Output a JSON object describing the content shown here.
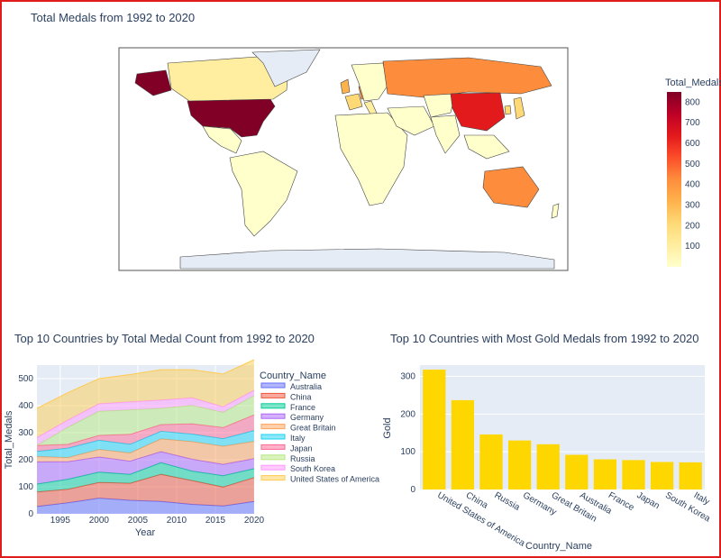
{
  "chart_data": [
    {
      "type": "choropleth",
      "title": "Total Medals from 1992 to 2020",
      "colorbar": {
        "title": "Total_Medals",
        "range": [
          0,
          850
        ],
        "ticks": [
          100,
          200,
          300,
          400,
          500,
          600,
          700,
          800
        ]
      },
      "colorscale": [
        "#ffffcc",
        "#ffeda0",
        "#fed976",
        "#feb24c",
        "#fd8d3c",
        "#fc4e2a",
        "#e31a1c",
        "#bd0026",
        "#800026"
      ],
      "no_data_color": "#e5ecf6",
      "countries": [
        {
          "name": "United States of America",
          "value": 850
        },
        {
          "name": "China",
          "value": 620
        },
        {
          "name": "Russia",
          "value": 430
        },
        {
          "name": "Germany",
          "value": 400
        },
        {
          "name": "Australia",
          "value": 310
        },
        {
          "name": "Great Britain",
          "value": 300
        },
        {
          "name": "France",
          "value": 250
        },
        {
          "name": "Italy",
          "value": 200
        },
        {
          "name": "Japan",
          "value": 200
        },
        {
          "name": "South Korea",
          "value": 180
        }
      ]
    },
    {
      "type": "area",
      "stacked": true,
      "title": "Top 10 Countries by Total Medal Count from 1992 to 2020",
      "xlabel": "Year",
      "ylabel": "Total_Medals",
      "xlim": [
        1992,
        2020
      ],
      "ylim": [
        0,
        550
      ],
      "xticks": [
        1995,
        2000,
        2005,
        2010,
        2015,
        2020
      ],
      "yticks": [
        0,
        100,
        200,
        300,
        400,
        500
      ],
      "legend_title": "Country_Name",
      "x": [
        1992,
        1996,
        2000,
        2004,
        2008,
        2012,
        2016,
        2020
      ],
      "series": [
        {
          "name": "Australia",
          "color": "#636efa",
          "values": [
            27,
            41,
            58,
            50,
            46,
            35,
            29,
            46
          ]
        },
        {
          "name": "China",
          "color": "#ef553b",
          "values": [
            54,
            50,
            58,
            63,
            100,
            88,
            70,
            88
          ]
        },
        {
          "name": "France",
          "color": "#00cc96",
          "values": [
            29,
            37,
            38,
            33,
            43,
            35,
            42,
            33
          ]
        },
        {
          "name": "Germany",
          "color": "#ab63fa",
          "values": [
            82,
            65,
            56,
            49,
            41,
            44,
            42,
            37
          ]
        },
        {
          "name": "Great Britain",
          "color": "#ffa15a",
          "values": [
            20,
            15,
            28,
            30,
            47,
            65,
            67,
            64
          ]
        },
        {
          "name": "Italy",
          "color": "#19d3f3",
          "values": [
            19,
            35,
            34,
            32,
            28,
            28,
            28,
            40
          ]
        },
        {
          "name": "Japan",
          "color": "#ff6692",
          "values": [
            22,
            14,
            18,
            37,
            25,
            38,
            41,
            58
          ]
        },
        {
          "name": "Russia",
          "color": "#b6e880",
          "values": [
            0,
            63,
            89,
            90,
            60,
            68,
            56,
            71
          ]
        },
        {
          "name": "South Korea",
          "color": "#ff97ff",
          "values": [
            29,
            27,
            28,
            30,
            31,
            28,
            21,
            20
          ]
        },
        {
          "name": "United States of America",
          "color": "#fecb52",
          "values": [
            108,
            101,
            93,
            101,
            112,
            104,
            121,
            113
          ]
        }
      ]
    },
    {
      "type": "bar",
      "title": "Top 10 Countries with Most Gold Medals from 1992 to 2020",
      "xlabel": "Country_Name",
      "ylabel": "Gold",
      "ylim": [
        0,
        330
      ],
      "yticks": [
        0,
        100,
        200,
        300
      ],
      "bar_color": "#ffd700",
      "categories": [
        "United States of America",
        "China",
        "Russia",
        "Germany",
        "Great Britain",
        "Australia",
        "France",
        "Japan",
        "South Korea",
        "Italy"
      ],
      "values": [
        318,
        237,
        146,
        130,
        120,
        92,
        80,
        78,
        73,
        72
      ]
    }
  ]
}
